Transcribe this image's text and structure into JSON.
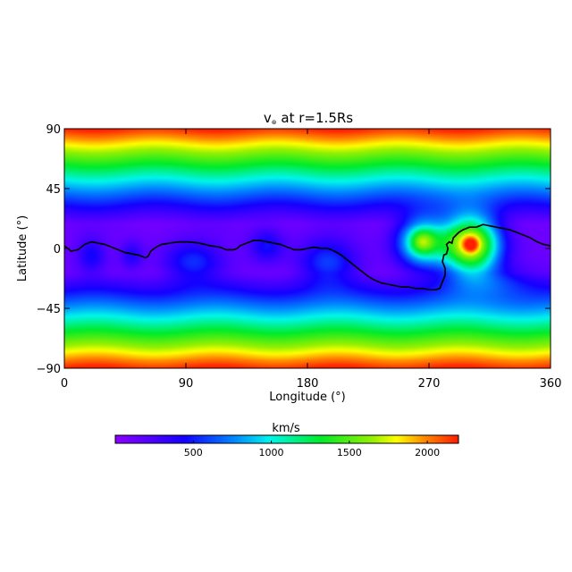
{
  "chart_data": {
    "type": "heatmap",
    "title_prefix": "v",
    "title_subscript": "⊛",
    "title_suffix": " at r=1.5Rs",
    "xlabel": "Longitude (°)",
    "ylabel": "Latitude (°)",
    "xlim": [
      0,
      360
    ],
    "ylim": [
      -90,
      90
    ],
    "x_ticks": [
      0,
      90,
      180,
      270,
      360
    ],
    "y_ticks": [
      90,
      45,
      0,
      -45,
      -90
    ],
    "x_tick_labels": [
      "0",
      "90",
      "180",
      "270",
      "360"
    ],
    "y_tick_labels": [
      "90",
      "45",
      "0",
      "−45",
      "−90"
    ],
    "colorbar": {
      "label": "km/s",
      "range": [
        0,
        2200
      ],
      "ticks": [
        500,
        1000,
        1500,
        2000
      ],
      "tick_labels": [
        "500",
        "1000",
        "1500",
        "2000"
      ],
      "colormap": "rainbow"
    },
    "neutral_line": {
      "color": "#000000",
      "lon": [
        0,
        5,
        10,
        15,
        20,
        25,
        30,
        35,
        40,
        45,
        50,
        55,
        60,
        62,
        64,
        68,
        72,
        78,
        85,
        92,
        100,
        108,
        115,
        120,
        125,
        128,
        130,
        135,
        140,
        145,
        150,
        155,
        160,
        165,
        168,
        170,
        175,
        180,
        185,
        190,
        195,
        200,
        205,
        210,
        215,
        220,
        225,
        230,
        235,
        240,
        245,
        250,
        255,
        260,
        265,
        270,
        275,
        278,
        280,
        282,
        282,
        280,
        281,
        283,
        284,
        283,
        285,
        287,
        288,
        290,
        292,
        295,
        300,
        305,
        310,
        315,
        320,
        325,
        330,
        335,
        340,
        345,
        350,
        355,
        360
      ],
      "lat": [
        2,
        -2,
        -1,
        3,
        5,
        4,
        3,
        1,
        -1,
        -3,
        -4,
        -5,
        -7,
        -6,
        -2,
        1,
        3,
        4,
        5,
        5,
        4,
        2,
        1,
        -1,
        -1,
        0,
        2,
        4,
        6,
        6,
        5,
        4,
        3,
        1,
        0,
        -1,
        -1,
        0,
        1,
        0,
        0,
        -2,
        -5,
        -9,
        -13,
        -17,
        -21,
        -24,
        -26,
        -27,
        -28,
        -29,
        -29,
        -30,
        -30,
        -31,
        -31,
        -30,
        -25,
        -20,
        -15,
        -10,
        -5,
        -4,
        0,
        3,
        5,
        4,
        8,
        10,
        12,
        14,
        16,
        16,
        18,
        17,
        16,
        15,
        14,
        12,
        10,
        8,
        5,
        3,
        2
      ]
    },
    "field_model": {
      "background_kms": 120,
      "polar_kms": 2200,
      "features": [
        {
          "lon": 265,
          "lat": 5,
          "wlon": 20,
          "wlat": 20,
          "peak_kms": 1500,
          "type": "ring"
        },
        {
          "lon": 301,
          "lat": 3,
          "wlon": 22,
          "wlat": 22,
          "peak_kms": 1750,
          "type": "ring_center"
        },
        {
          "lon": 20,
          "lat": -5,
          "wlon": 12,
          "wlat": 15,
          "peak_kms": 320,
          "type": "blob"
        },
        {
          "lon": 50,
          "lat": -5,
          "wlon": 10,
          "wlat": 12,
          "peak_kms": 280,
          "type": "blob"
        },
        {
          "lon": 95,
          "lat": -10,
          "wlon": 25,
          "wlat": 18,
          "peak_kms": 420,
          "type": "blob"
        },
        {
          "lon": 150,
          "lat": 2,
          "wlon": 15,
          "wlat": 15,
          "peak_kms": 350,
          "type": "blob"
        },
        {
          "lon": 195,
          "lat": -10,
          "wlon": 25,
          "wlat": 20,
          "peak_kms": 450,
          "type": "blob"
        },
        {
          "lon": 320,
          "lat": -25,
          "wlon": 40,
          "wlat": 15,
          "peak_kms": 300,
          "type": "blob"
        }
      ]
    }
  }
}
